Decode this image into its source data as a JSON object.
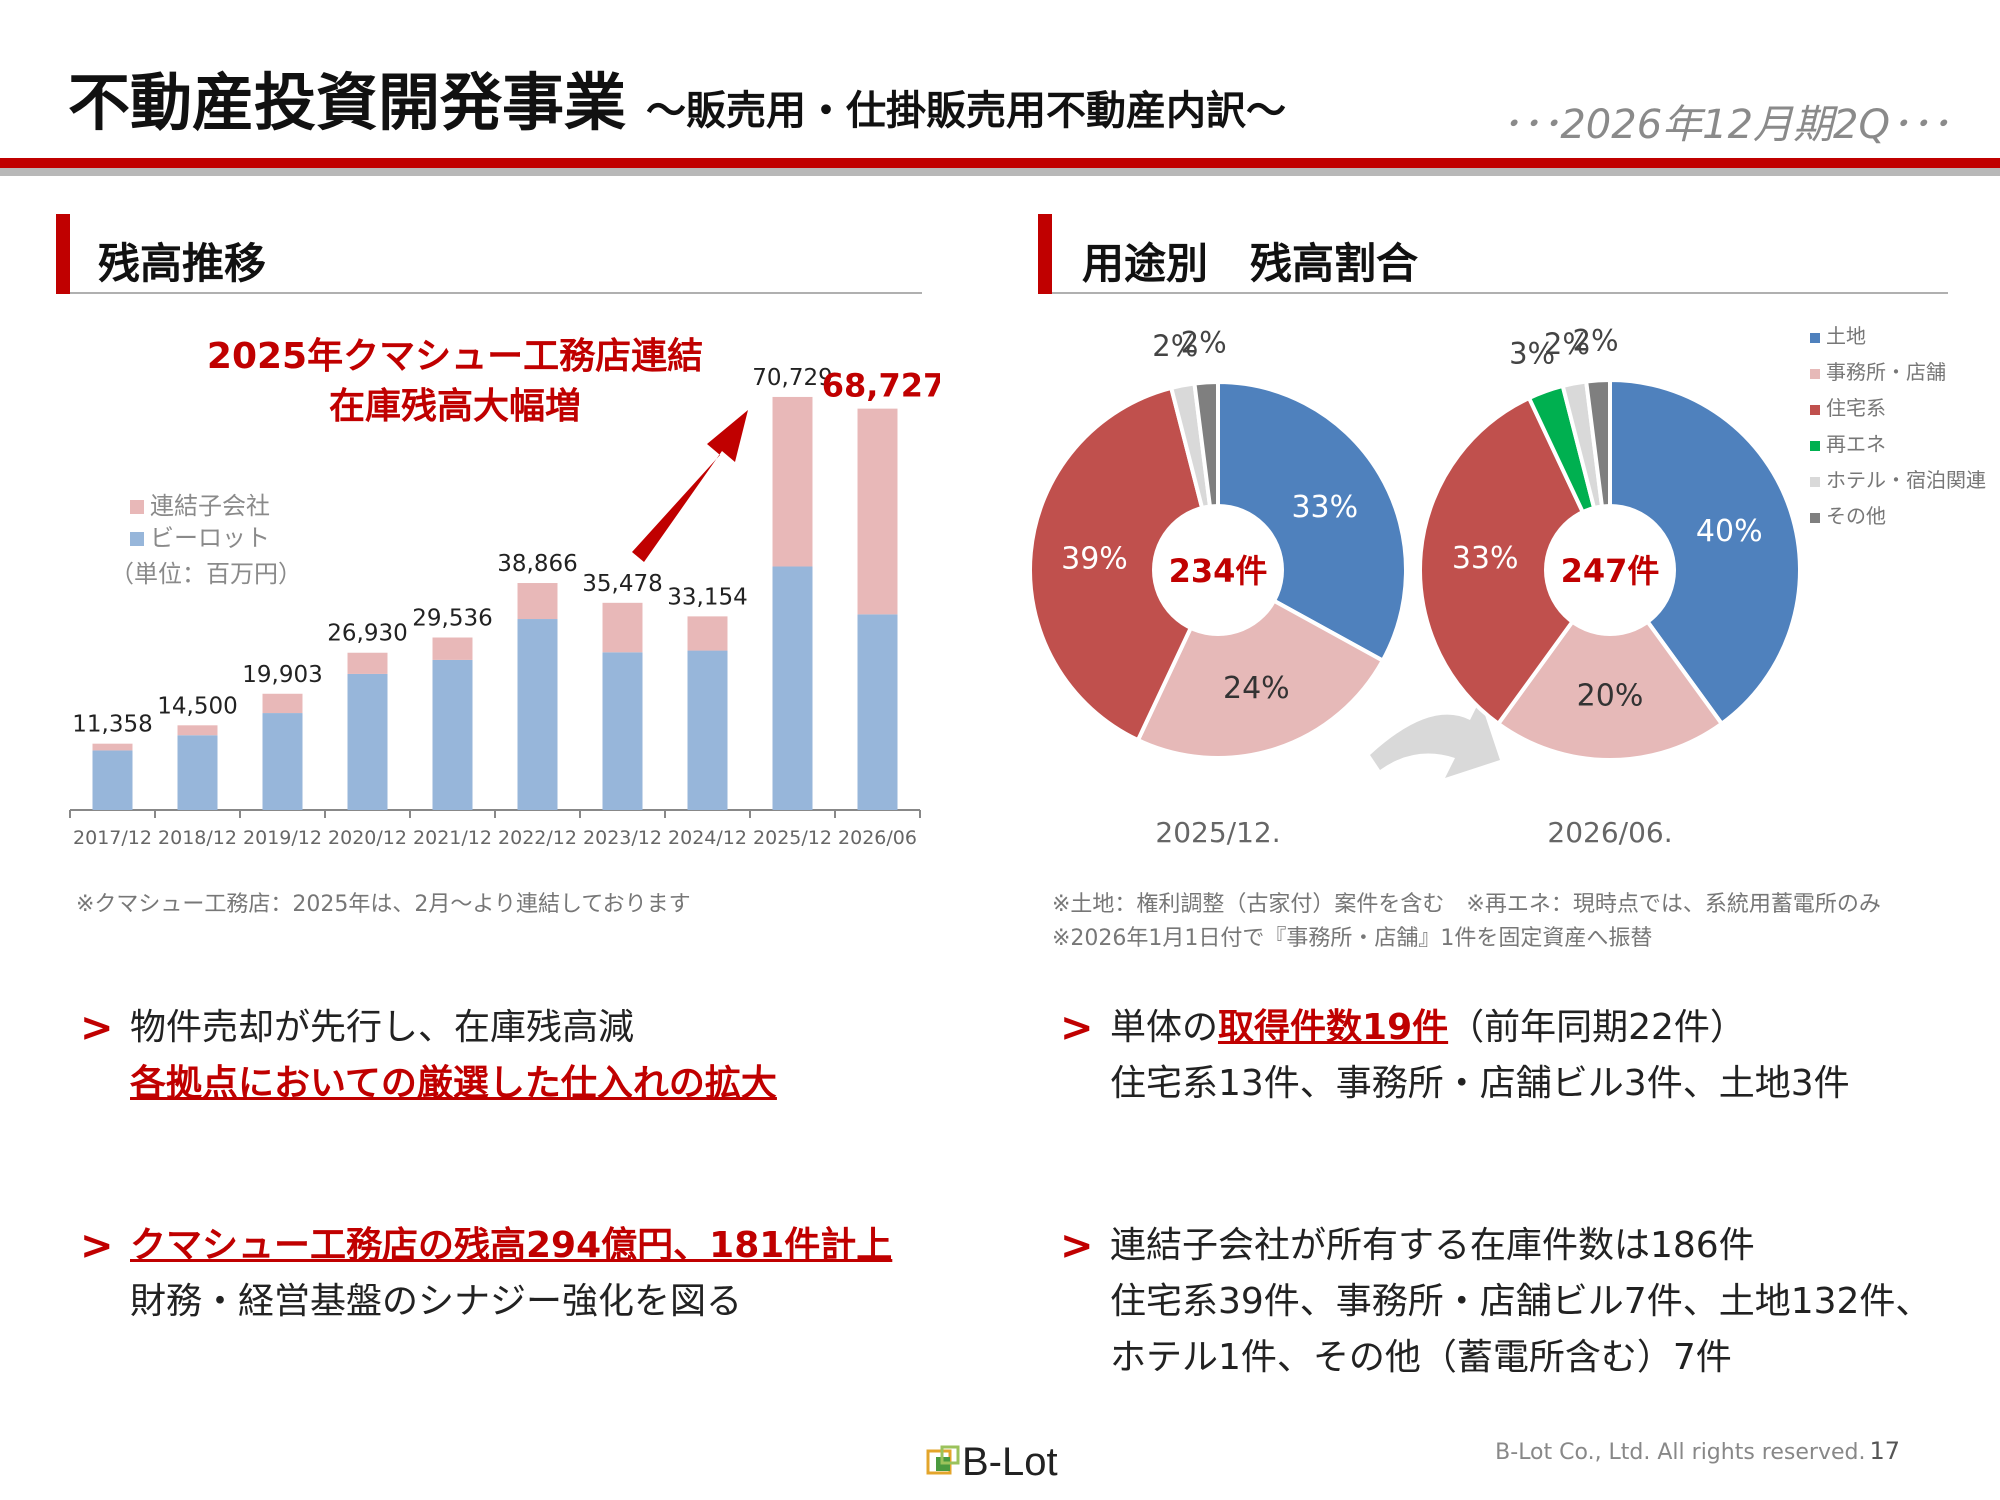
{
  "header": {
    "title": "不動産投資開発事業",
    "subtitle": "～販売用・仕掛販売用不動産内訳～",
    "period": "･･･2026年12月期2Q･･･"
  },
  "left_section": {
    "title": "残高推移",
    "callout_line1": "2025年クマシュー工務店連結",
    "callout_line2": "在庫残高大幅増",
    "unit": "（単位：百万円）",
    "note": "※クマシュー工務店：2025年は、2月～より連結しております"
  },
  "right_section": {
    "title": "用途別　残高割合",
    "note1": "※土地：権利調整（古家付）案件を含む　※再エネ：現時点では、系統用蓄電所のみ",
    "note2": "※2026年1月1日付で『事務所・店舗』1件を固定資産へ振替"
  },
  "chart_data": [
    {
      "type": "bar",
      "stacked": true,
      "categories": [
        "2017/12",
        "2018/12",
        "2019/12",
        "2020/12",
        "2021/12",
        "2022/12",
        "2023/12",
        "2024/12",
        "2025/12",
        "2026/06"
      ],
      "series": [
        {
          "name": "ビーロット",
          "values": [
            10200,
            12800,
            16600,
            23300,
            25700,
            32700,
            27000,
            27300,
            41700,
            33500
          ],
          "color": "#97b6da"
        },
        {
          "name": "連結子会社",
          "values": [
            1158,
            1700,
            3303,
            3630,
            3836,
            6166,
            8478,
            5854,
            29029,
            35227
          ],
          "color": "#e8b8b8"
        }
      ],
      "totals": [
        "11,358",
        "14,500",
        "19,903",
        "26,930",
        "29,536",
        "38,866",
        "35,478",
        "33,154",
        "70,729",
        "68,727"
      ],
      "ylim": [
        0,
        75000
      ],
      "legend": "top-left"
    },
    {
      "type": "pie",
      "caption": "2025/12.",
      "center_label": "234件",
      "slices": [
        {
          "label": "土地",
          "value": 33,
          "text": "33%",
          "color": "#4f81bd"
        },
        {
          "label": "事務所・店舗",
          "value": 24,
          "text": "24%",
          "color": "#e6b9b8"
        },
        {
          "label": "住宅系",
          "value": 39,
          "text": "39%",
          "color": "#c0504d"
        },
        {
          "label": "ホテル・宿泊関連",
          "value": 2,
          "text": "2%",
          "color": "#d9d9d9"
        },
        {
          "label": "その他",
          "value": 2,
          "text": "2%",
          "color": "#7f7f7f"
        }
      ]
    },
    {
      "type": "pie",
      "caption": "2026/06.",
      "center_label": "247件",
      "slices": [
        {
          "label": "土地",
          "value": 40,
          "text": "40%",
          "color": "#4f81bd"
        },
        {
          "label": "事務所・店舗",
          "value": 20,
          "text": "20%",
          "color": "#e6b9b8"
        },
        {
          "label": "住宅系",
          "value": 33,
          "text": "33%",
          "color": "#c0504d"
        },
        {
          "label": "再エネ",
          "value": 3,
          "text": "3%",
          "color": "#00b050"
        },
        {
          "label": "ホテル・宿泊関連",
          "value": 2,
          "text": "2%",
          "color": "#d9d9d9"
        },
        {
          "label": "その他",
          "value": 2,
          "text": "2%",
          "color": "#7f7f7f"
        }
      ]
    }
  ],
  "pie_legend": [
    {
      "label": "土地",
      "color": "#4f81bd"
    },
    {
      "label": "事務所・店舗",
      "color": "#e6b9b8"
    },
    {
      "label": "住宅系",
      "color": "#c0504d"
    },
    {
      "label": "再エネ",
      "color": "#00b050"
    },
    {
      "label": "ホテル・宿泊関連",
      "color": "#d9d9d9"
    },
    {
      "label": "その他",
      "color": "#7f7f7f"
    }
  ],
  "bullets_left": {
    "b1_line1": "物件売却が先行し、在庫残高減",
    "b1_line2": "各拠点においての厳選した仕入れの拡大",
    "b2_line1": "クマシュー工務店の残高294億円、181件計上",
    "b2_line2": "財務・経営基盤のシナジー強化を図る"
  },
  "bullets_right": {
    "b1_pre": "単体の",
    "b1_hl": "取得件数19件",
    "b1_post": "（前年同期22件）",
    "b1_line2": "住宅系13件、事務所・店舗ビル3件、土地3件",
    "b2_line1": "連結子会社が所有する在庫件数は186件",
    "b2_line2": "住宅系39件、事務所・店舗ビル7件、土地132件、",
    "b2_line3": "ホテル1件、その他（蓄電所含む）7件"
  },
  "footer": {
    "logo_text": "B-Lot",
    "copyright": "B-Lot Co., Ltd. All rights reserved.",
    "page": "17"
  },
  "colors": {
    "accent": "#c00000",
    "rule_gray": "#b8b8b8"
  }
}
